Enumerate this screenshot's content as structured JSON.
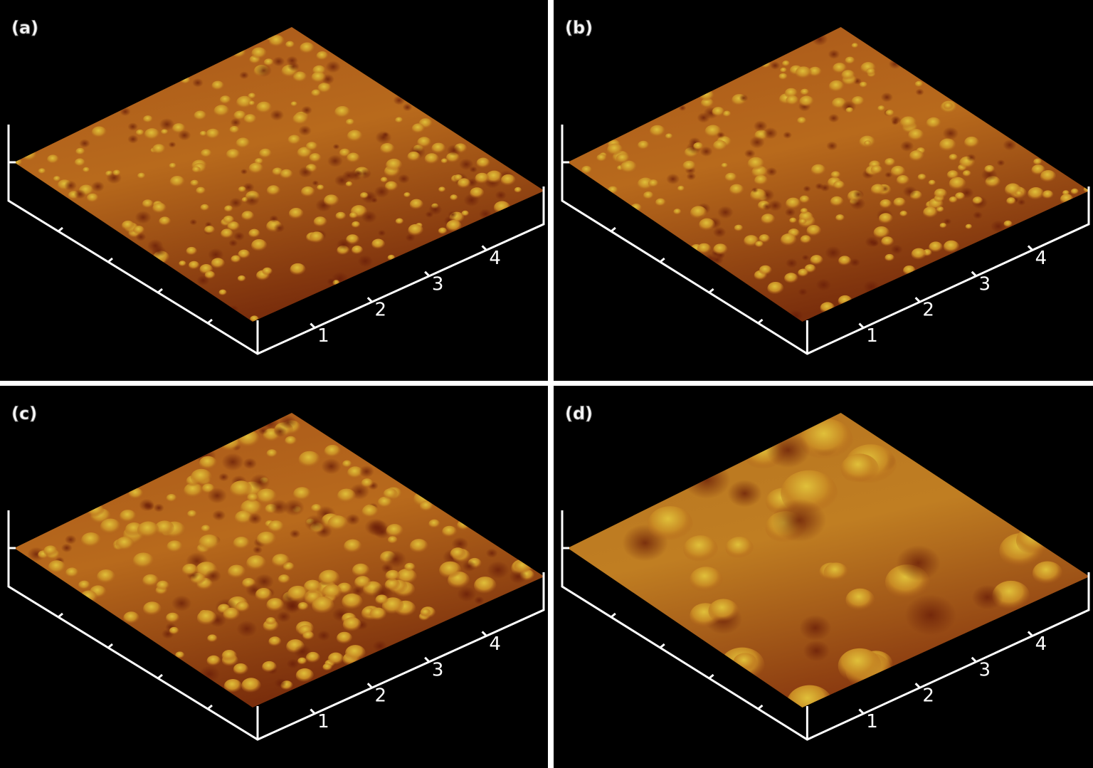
{
  "panels": [
    {
      "label": "(a)",
      "ticks": [
        "1",
        "2",
        "3",
        "4"
      ]
    },
    {
      "label": "(b)",
      "ticks": [
        "1",
        "2",
        "3",
        "4"
      ]
    },
    {
      "label": "(c)",
      "ticks": [
        "1",
        "2",
        "3",
        "4"
      ]
    },
    {
      "label": "(d)",
      "ticks": [
        "1",
        "2",
        "3",
        "4"
      ]
    }
  ]
}
